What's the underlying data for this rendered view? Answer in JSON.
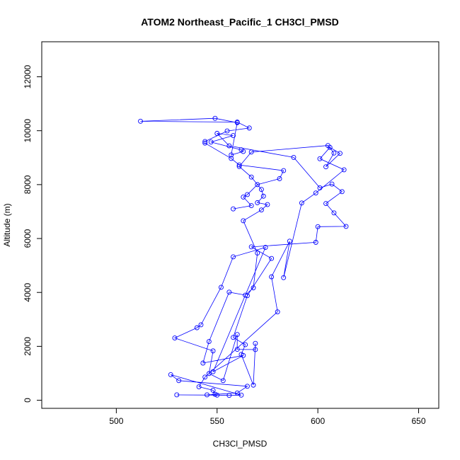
{
  "chart_data": {
    "type": "line",
    "title": "ATOM2 Northeast_Pacific_1 CH3Cl_PMSD",
    "xlabel": "CH3Cl_PMSD",
    "ylabel": "Altitude (m)",
    "xlim": [
      463,
      660
    ],
    "ylim": [
      -300,
      13300
    ],
    "xticks": [
      500,
      550,
      600,
      650
    ],
    "yticks": [
      0,
      2000,
      4000,
      6000,
      8000,
      10000,
      12000
    ],
    "grid": false,
    "colors": {
      "series": "#0000ff",
      "axis": "#000000"
    },
    "marker": "open-circle",
    "series": [
      {
        "x": [
          530,
          550,
          556,
          562,
          527,
          531,
          565,
          560,
          545,
          549,
          548,
          541,
          544,
          580,
          577,
          586,
          583,
          592,
          599,
          613,
          601,
          606,
          611,
          604,
          608,
          605,
          567,
          561,
          567,
          572,
          573,
          570,
          575,
          572,
          563,
          570,
          568,
          564,
          556,
          546,
          543,
          563,
          548,
          574,
          558,
          552,
          542,
          540,
          529,
          548,
          546,
          553,
          560,
          560,
          569,
          569,
          568,
          562,
          564,
          558,
          565,
          577,
          567,
          599,
          600,
          614,
          608,
          604,
          612,
          607,
          601,
          588,
          556,
          550,
          558,
          547,
          562,
          563,
          557,
          560,
          549,
          512,
          560,
          566,
          555,
          544,
          544,
          557,
          561,
          583,
          581,
          570,
          565,
          563,
          567,
          558
        ],
        "y": [
          200,
          190,
          180,
          190,
          950,
          730,
          520,
          270,
          200,
          220,
          370,
          500,
          860,
          3280,
          4580,
          5900,
          4550,
          7320,
          7690,
          8550,
          8960,
          9380,
          9160,
          8660,
          9170,
          9450,
          9210,
          8670,
          8280,
          7820,
          7570,
          7330,
          7260,
          7060,
          6660,
          5460,
          4170,
          3900,
          4010,
          2180,
          1380,
          1660,
          1060,
          5670,
          5320,
          4190,
          2800,
          2690,
          2310,
          1830,
          990,
          730,
          2440,
          1890,
          1880,
          2110,
          560,
          1700,
          2060,
          2330,
          3880,
          5260,
          5690,
          5860,
          6440,
          6450,
          6950,
          7300,
          7740,
          8020,
          7880,
          9010,
          9440,
          9900,
          9820,
          9580,
          9290,
          9230,
          9100,
          10300,
          10460,
          10350,
          10320,
          10100,
          9990,
          9600,
          9540,
          8970,
          8730,
          8520,
          8220,
          8000,
          7630,
          7540,
          7220,
          7100
        ]
      }
    ]
  }
}
